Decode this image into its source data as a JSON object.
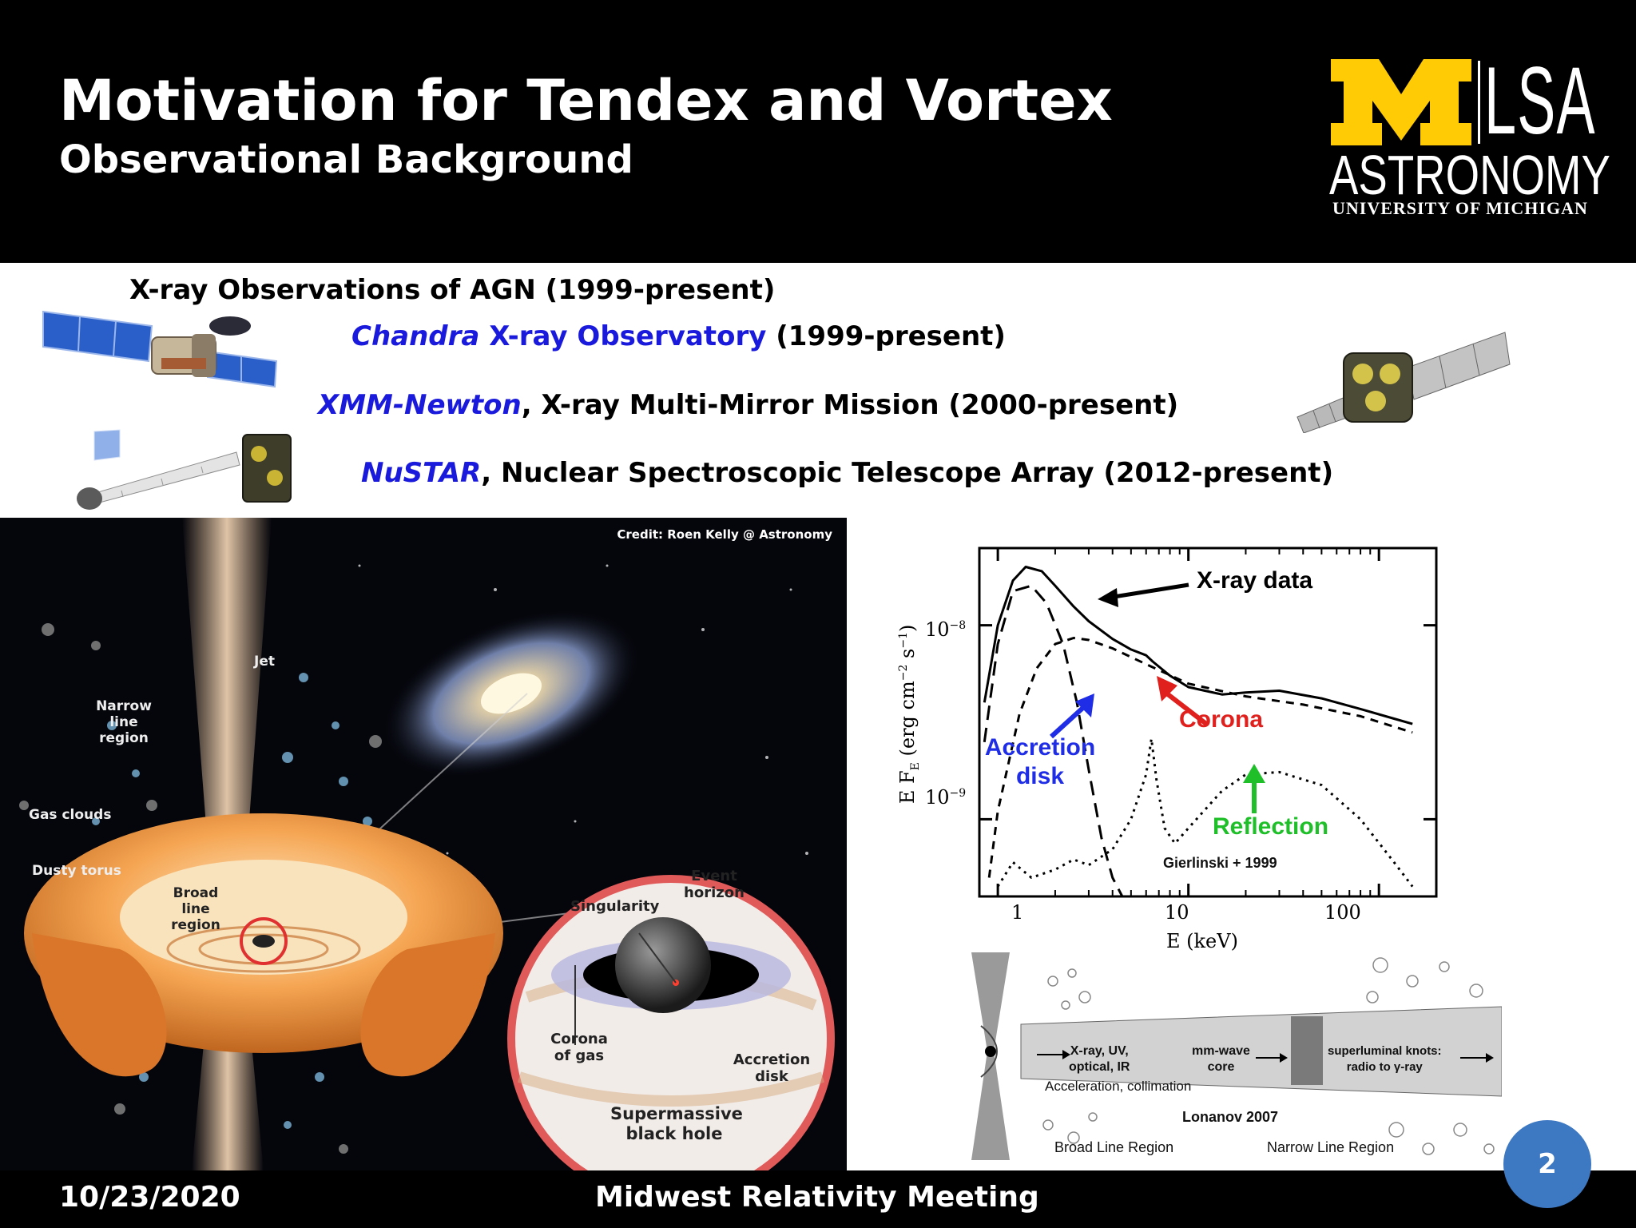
{
  "header": {
    "title": "Motivation for Tendex and Vortex",
    "subtitle": "Observational Background",
    "logo": {
      "lsa": "LSA",
      "astronomy": "ASTRONOMY",
      "university": "UNIVERSITY OF MICHIGAN"
    }
  },
  "content": {
    "heading": "X-ray Observations of AGN (1999-present)",
    "missions": [
      {
        "name": "Chandra",
        "name_rest": " X-ray Observatory",
        "detail": " (1999-present)"
      },
      {
        "name": "XMM-Newton",
        "name_rest": "",
        "detail": ", X-ray Multi-Mirror Mission (2000-present)"
      },
      {
        "name": "NuSTAR",
        "name_rest": "",
        "detail": ", Nuclear Spectroscopic Telescope Array (2012-present)"
      }
    ]
  },
  "agn_figure": {
    "credit": "Credit: Roen Kelly @ Astronomy",
    "labels": {
      "jet": "Jet",
      "narrow_line_region": "Narrow line region",
      "gas_clouds": "Gas clouds",
      "dusty_torus": "Dusty torus",
      "broad_line_region": "Broad line region",
      "singularity": "Singularity",
      "event_horizon": "Event horizon",
      "corona_of_gas": "Corona of gas",
      "accretion_disk": "Accretion disk",
      "supermassive_black_hole": "Supermassive black hole"
    }
  },
  "chart_data": {
    "type": "line",
    "xlabel": "E (keV)",
    "ylabel": "E F_E (erg cm^-2 s^-1)",
    "x_scale": "log",
    "y_scale": "log",
    "xlim": [
      0.8,
      200
    ],
    "ylim": [
      4e-10,
      2.5e-08
    ],
    "x_ticks": [
      "1",
      "10",
      "100"
    ],
    "y_ticks": [
      "10^-8",
      "10^-9"
    ],
    "annotations": {
      "xray_data": "X-ray data",
      "corona": "Corona",
      "accretion_disk": "Accretion disk",
      "reflection": "Reflection",
      "citation": "Gierlinski + 1999"
    },
    "colors": {
      "corona": "#e0201c",
      "accretion": "#1f2ee6",
      "reflection": "#1fbf2a"
    },
    "series": [
      {
        "name": "X-ray data",
        "style": "solid",
        "x": [
          0.85,
          1.0,
          1.2,
          1.4,
          1.7,
          2.0,
          2.5,
          3.0,
          4.0,
          5.0,
          6.0,
          6.5,
          8.0,
          10,
          15,
          20,
          30,
          50,
          80,
          120,
          150
        ],
        "y": [
          4e-09,
          1e-08,
          1.7e-08,
          2e-08,
          1.9e-08,
          1.6e-08,
          1.25e-08,
          1.05e-08,
          8.5e-09,
          7.5e-09,
          7e-09,
          6.5e-09,
          5.5e-09,
          4.8e-09,
          4.4e-09,
          4.5e-09,
          4.6e-09,
          4.2e-09,
          3.7e-09,
          3.3e-09,
          3.1e-09
        ]
      },
      {
        "name": "Accretion disk",
        "style": "long-dash",
        "x": [
          0.85,
          1.0,
          1.2,
          1.5,
          1.8,
          2.2,
          2.6,
          3.0,
          3.5,
          4.0,
          4.5
        ],
        "y": [
          2.5e-09,
          8e-09,
          1.5e-08,
          1.6e-08,
          1.3e-08,
          8e-09,
          4e-09,
          1.8e-09,
          8e-10,
          5e-10,
          4e-10
        ]
      },
      {
        "name": "Corona",
        "style": "short-dash",
        "x": [
          0.9,
          1.0,
          1.3,
          1.6,
          2.0,
          2.5,
          3.0,
          4.0,
          6.0,
          10,
          20,
          40,
          80,
          120,
          150
        ],
        "y": [
          5e-10,
          1.1e-09,
          3.5e-09,
          6e-09,
          8e-09,
          8.6e-09,
          8.4e-09,
          7.6e-09,
          6.3e-09,
          5e-09,
          4.3e-09,
          3.9e-09,
          3.4e-09,
          3e-09,
          2.8e-09
        ]
      },
      {
        "name": "Reflection",
        "style": "dotted",
        "x": [
          1.0,
          1.2,
          1.5,
          2.0,
          2.5,
          3.0,
          4.0,
          5.0,
          6.0,
          6.4,
          6.8,
          7.5,
          8.5,
          10,
          15,
          20,
          30,
          50,
          80,
          120,
          150
        ],
        "y": [
          4.5e-10,
          6e-10,
          5e-10,
          5.5e-10,
          6.2e-10,
          5.8e-10,
          7e-10,
          1e-09,
          1.7e-09,
          2.6e-09,
          1.6e-09,
          9e-10,
          7.5e-10,
          9e-10,
          1.4e-09,
          1.7e-09,
          1.75e-09,
          1.5e-09,
          1e-09,
          6e-10,
          4.5e-10
        ]
      }
    ]
  },
  "jet_figure": {
    "xray_uv": "X-ray, UV,",
    "optical_ir": "optical, IR",
    "mmwave": "mm-wave",
    "core": "core",
    "superluminal": "superluminal knots:",
    "radio_gamma": "radio to γ-ray",
    "acceleration": "Acceleration, collimation",
    "citation": "Lonanov 2007",
    "broad_line_region": "Broad Line Region",
    "narrow_line_region": "Narrow Line Region"
  },
  "footer": {
    "date": "10/23/2020",
    "meeting": "Midwest Relativity Meeting",
    "page": "2"
  },
  "colors": {
    "header_bg": "#000000",
    "mission_blue": "#1a1adc",
    "michigan_maize": "#ffcb05",
    "badge_blue": "#3d78c2"
  }
}
